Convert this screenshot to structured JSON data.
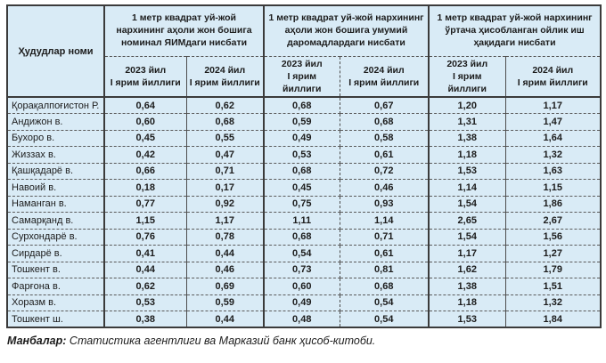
{
  "table": {
    "corner_header": "Ҳудудлар номи",
    "groups": [
      {
        "title": "1 метр квадрат уй-жой нархининг аҳоли жон бошига номинал ЯИМдаги нисбати"
      },
      {
        "title": "1 метр квадрат уй-жой нархининг аҳоли жон бошига умумий даромадлардаги нисбати"
      },
      {
        "title": "1 метр квадрат уй-жой нархининг ўртача ҳисобланган ойлик иш ҳақидаги нисбати"
      }
    ],
    "periods": [
      {
        "line1": "2023 йил",
        "line2": "I ярим йиллиги"
      },
      {
        "line1": "2024 йил",
        "line2": "I ярим йиллиги"
      }
    ],
    "rows": [
      {
        "region": "Қорақалпоғистон Р.",
        "values": [
          "0,64",
          "0,62",
          "0,68",
          "0,67",
          "1,20",
          "1,17"
        ]
      },
      {
        "region": "Андижон в.",
        "values": [
          "0,60",
          "0,68",
          "0,59",
          "0,68",
          "1,31",
          "1,47"
        ]
      },
      {
        "region": "Бухоро в.",
        "values": [
          "0,45",
          "0,55",
          "0,49",
          "0,58",
          "1,38",
          "1,64"
        ]
      },
      {
        "region": "Жиззах в.",
        "values": [
          "0,42",
          "0,47",
          "0,53",
          "0,61",
          "1,18",
          "1,32"
        ]
      },
      {
        "region": "Қашқадарё в.",
        "values": [
          "0,66",
          "0,71",
          "0,68",
          "0,72",
          "1,53",
          "1,63"
        ]
      },
      {
        "region": "Навоий в.",
        "values": [
          "0,18",
          "0,17",
          "0,45",
          "0,46",
          "1,14",
          "1,15"
        ]
      },
      {
        "region": "Наманган в.",
        "values": [
          "0,77",
          "0,92",
          "0,75",
          "0,93",
          "1,54",
          "1,86"
        ]
      },
      {
        "region": "Самарқанд в.",
        "values": [
          "1,15",
          "1,17",
          "1,11",
          "1,14",
          "2,65",
          "2,67"
        ]
      },
      {
        "region": "Сурхондарё в.",
        "values": [
          "0,76",
          "0,78",
          "0,68",
          "0,71",
          "1,54",
          "1,56"
        ]
      },
      {
        "region": "Сирдарё в.",
        "values": [
          "0,41",
          "0,44",
          "0,54",
          "0,61",
          "1,17",
          "1,27"
        ]
      },
      {
        "region": "Тошкент в.",
        "values": [
          "0,44",
          "0,46",
          "0,73",
          "0,81",
          "1,62",
          "1,79"
        ]
      },
      {
        "region": "Фарғона в.",
        "values": [
          "0,62",
          "0,69",
          "0,60",
          "0,68",
          "1,38",
          "1,51"
        ]
      },
      {
        "region": "Хоразм в.",
        "values": [
          "0,53",
          "0,59",
          "0,49",
          "0,54",
          "1,18",
          "1,32"
        ]
      },
      {
        "region": "Тошкент ш.",
        "values": [
          "0,38",
          "0,44",
          "0,48",
          "0,54",
          "1,53",
          "1,84"
        ]
      }
    ]
  },
  "footer": {
    "label": "Манбалар:",
    "text": " Статистика агентлиги ва Марказий банк ҳисоб-китоби."
  },
  "colors": {
    "cell_background": "#d9ebf6",
    "border": "#3b3b3b",
    "text": "#1c1c1c"
  }
}
